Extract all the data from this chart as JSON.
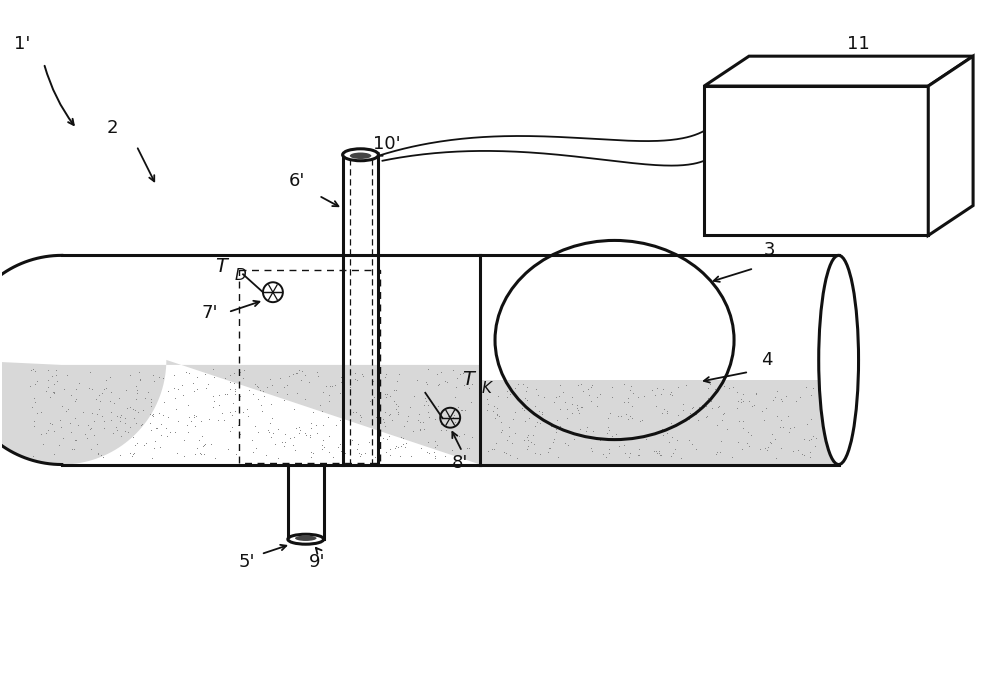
{
  "bg_color": "#ffffff",
  "line_color": "#111111",
  "stipple_color": "#888888",
  "water_fill": "#d8d8d8",
  "label_1prime": "1'",
  "label_2": "2",
  "label_3": "3",
  "label_4": "4",
  "label_5prime": "5'",
  "label_6prime": "6'",
  "label_7prime": "7'",
  "label_8prime": "8'",
  "label_9prime": "9'",
  "label_10prime": "10'",
  "label_11": "11",
  "label_TD": "T",
  "label_TD_sub": "D",
  "label_TK": "T",
  "label_TK_sub": "K"
}
